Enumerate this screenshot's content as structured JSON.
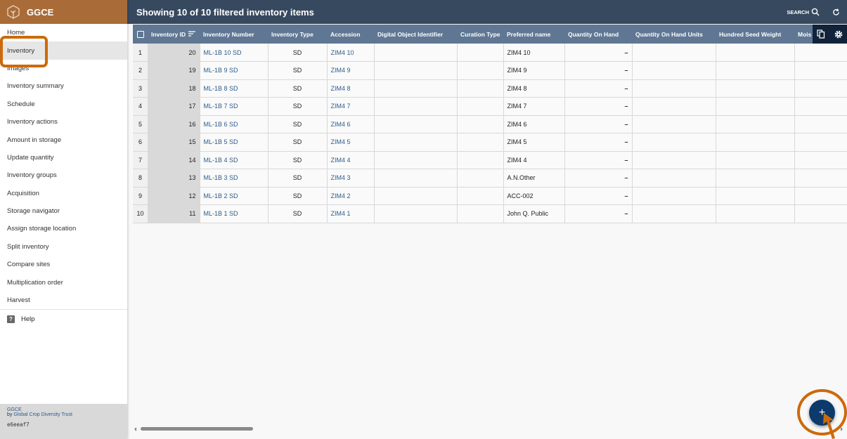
{
  "app": {
    "name": "GGCE",
    "logo_icon": "tree-cube-icon"
  },
  "sidebar": {
    "items": [
      {
        "label": "Home"
      },
      {
        "label": "Inventory",
        "active": true
      },
      {
        "label": "Images"
      },
      {
        "label": "Inventory summary"
      },
      {
        "label": "Schedule"
      },
      {
        "label": "Inventory actions"
      },
      {
        "label": "Amount in storage"
      },
      {
        "label": "Update quantity"
      },
      {
        "label": "Inventory groups"
      },
      {
        "label": "Acquisition"
      },
      {
        "label": "Storage navigator"
      },
      {
        "label": "Assign storage location"
      },
      {
        "label": "Split inventory"
      },
      {
        "label": "Compare sites"
      },
      {
        "label": "Multiplication order"
      },
      {
        "label": "Harvest"
      }
    ],
    "help": "Help"
  },
  "footer": {
    "name": "GGCE",
    "by": "by ",
    "org": "Global Crop Diversity Trust",
    "version": "e6eeaf7"
  },
  "header": {
    "title": "Showing 10 of 10 filtered inventory items",
    "search_label": "SEARCH"
  },
  "table": {
    "columns": [
      "Inventory ID",
      "Inventory Number",
      "Inventory Type",
      "Accession",
      "Digital Object Identifier",
      "Curation Type",
      "Preferred name",
      "Quantity On Hand",
      "Quantity On Hand Units",
      "Hundred Seed Weight",
      "Mois"
    ],
    "sorted_column": "Inventory ID",
    "rows": [
      {
        "n": "1",
        "id": "20",
        "number": "ML-1B 10 SD",
        "type": "SD",
        "accession": "ZIM4 10",
        "doi": "",
        "curation": "",
        "name": "ZIM4 10",
        "qoh": "–"
      },
      {
        "n": "2",
        "id": "19",
        "number": "ML-1B 9 SD",
        "type": "SD",
        "accession": "ZIM4 9",
        "doi": "",
        "curation": "",
        "name": "ZIM4 9",
        "qoh": "–"
      },
      {
        "n": "3",
        "id": "18",
        "number": "ML-1B 8 SD",
        "type": "SD",
        "accession": "ZIM4 8",
        "doi": "",
        "curation": "",
        "name": "ZIM4 8",
        "qoh": "–"
      },
      {
        "n": "4",
        "id": "17",
        "number": "ML-1B 7 SD",
        "type": "SD",
        "accession": "ZIM4 7",
        "doi": "",
        "curation": "",
        "name": "ZIM4 7",
        "qoh": "–"
      },
      {
        "n": "5",
        "id": "16",
        "number": "ML-1B 6 SD",
        "type": "SD",
        "accession": "ZIM4 6",
        "doi": "",
        "curation": "",
        "name": "ZIM4 6",
        "qoh": "–"
      },
      {
        "n": "6",
        "id": "15",
        "number": "ML-1B 5 SD",
        "type": "SD",
        "accession": "ZIM4 5",
        "doi": "",
        "curation": "",
        "name": "ZIM4 5",
        "qoh": "–"
      },
      {
        "n": "7",
        "id": "14",
        "number": "ML-1B 4 SD",
        "type": "SD",
        "accession": "ZIM4 4",
        "doi": "",
        "curation": "",
        "name": "ZIM4 4",
        "qoh": "–"
      },
      {
        "n": "8",
        "id": "13",
        "number": "ML-1B 3 SD",
        "type": "SD",
        "accession": "ZIM4 3",
        "doi": "",
        "curation": "",
        "name": "A.N.Other",
        "qoh": "–"
      },
      {
        "n": "9",
        "id": "12",
        "number": "ML-1B 2 SD",
        "type": "SD",
        "accession": "ZIM4 2",
        "doi": "",
        "curation": "",
        "name": "ACC-002",
        "qoh": "–"
      },
      {
        "n": "10",
        "id": "11",
        "number": "ML-1B 1 SD",
        "type": "SD",
        "accession": "ZIM4 1",
        "doi": "",
        "curation": "",
        "name": "John Q. Public",
        "qoh": "–"
      }
    ]
  },
  "fab": {
    "label": "+"
  },
  "colors": {
    "brand": "#a96c39",
    "header": "#37495f",
    "table_header": "#5f7793",
    "fab": "#0c3a6b",
    "annotation": "#cc6a0b"
  }
}
